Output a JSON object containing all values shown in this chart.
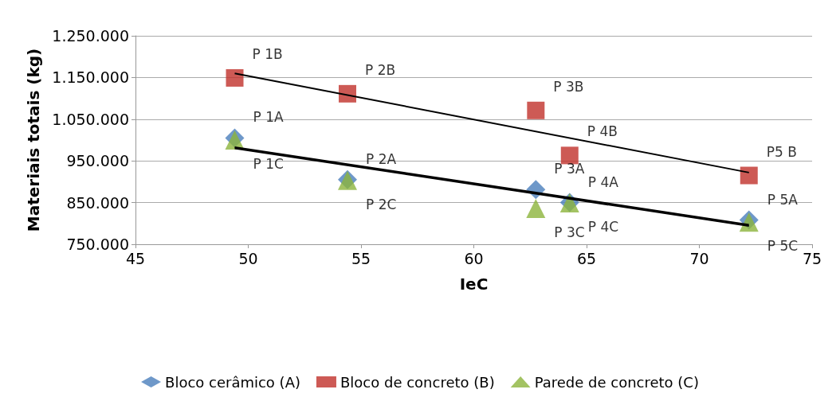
{
  "chart_data": {
    "type": "scatter",
    "xlabel": "IeC",
    "ylabel": "Materiais totais (kg)",
    "xlim": [
      45,
      75
    ],
    "xticks": [
      45,
      50,
      55,
      60,
      65,
      70,
      75
    ],
    "ylim": [
      750000,
      1250000
    ],
    "yticks": [
      {
        "value": 750000,
        "label": "750.000"
      },
      {
        "value": 850000,
        "label": "850.000"
      },
      {
        "value": 950000,
        "label": "950.000"
      },
      {
        "value": 1050000,
        "label": "1.050.000"
      },
      {
        "value": 1150000,
        "label": "1.150.000"
      },
      {
        "value": 1250000,
        "label": "1.250.000"
      }
    ],
    "grid": "y",
    "legend": "bottom",
    "series": [
      {
        "name": "Bloco cerâmico (A)",
        "color": "#4a7ebb",
        "marker": "diamond",
        "x": [
          49.4,
          54.4,
          62.75,
          64.25,
          72.2
        ],
        "values": [
          1005000,
          905000,
          881000,
          850000,
          808000
        ],
        "value_labels": [
          "P 1A",
          "P 2A",
          "P 3A",
          "P 4A",
          "P 5A"
        ]
      },
      {
        "name": "Bloco de concreto (B)",
        "color": "#c0312b",
        "marker": "square",
        "x": [
          49.4,
          54.4,
          62.75,
          64.25,
          72.2
        ],
        "values": [
          1149000,
          1111000,
          1071000,
          963000,
          915000
        ],
        "value_labels": [
          "P 1B",
          "P 2B",
          "P 3B",
          "P 4B",
          "P5 B"
        ]
      },
      {
        "name": "Parede de concreto (C)",
        "color": "#8cb43c",
        "marker": "triangle",
        "x": [
          49.4,
          54.4,
          62.75,
          64.25,
          72.2
        ],
        "values": [
          1000000,
          903000,
          836000,
          849000,
          803000
        ],
        "value_labels": [
          "P 1C",
          "P 2C",
          "P 3C",
          "P 4C",
          "P 5C"
        ]
      },
      {
        "type": "line",
        "color": "#000000",
        "marker": "none",
        "x": [
          49.4,
          72.2
        ],
        "values": [
          983000,
          797000
        ]
      },
      {
        "type": "line",
        "color": "#000000",
        "marker": "none",
        "x": [
          49.4,
          72.2
        ],
        "values": [
          1160000,
          922000
        ]
      },
      {
        "type": "line",
        "color": "#000000",
        "marker": "none",
        "x": [
          49.4,
          72.2
        ],
        "values": [
          980000,
          794000
        ]
      }
    ]
  }
}
